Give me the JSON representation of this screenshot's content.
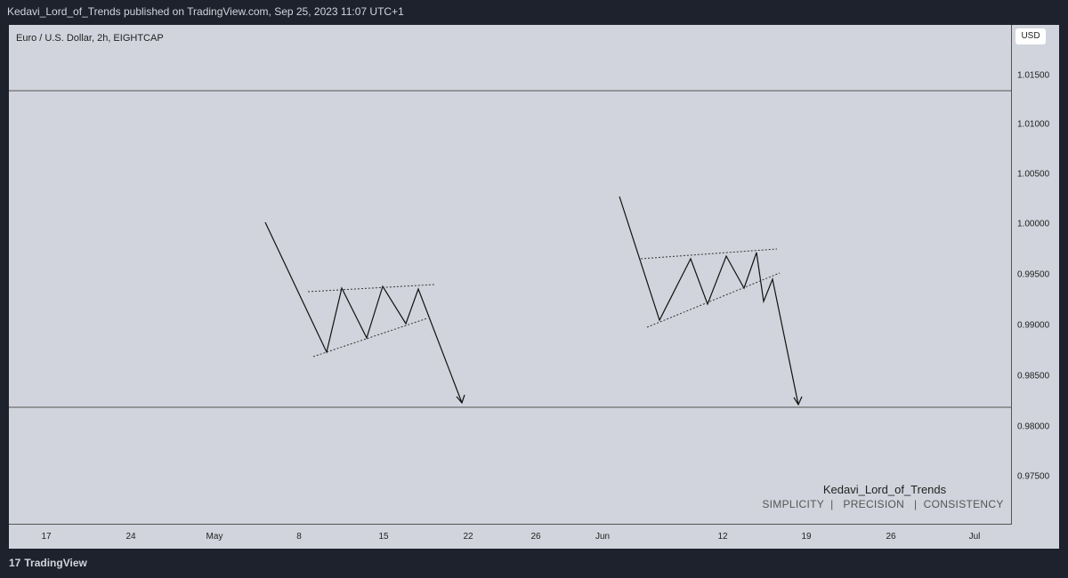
{
  "header": {
    "title": "Kedavi_Lord_of_Trends published on TradingView.com, Sep 25, 2023 11:07 UTC+1"
  },
  "chart": {
    "symbol": "Euro / U.S. Dollar, 2h, EIGHTCAP",
    "currency": "USD",
    "price_labels": [
      "1.01500",
      "1.01000",
      "1.00500",
      "1.00000",
      "0.99500",
      "0.99000",
      "0.98500",
      "0.98000",
      "0.97500"
    ],
    "time_labels": [
      "17",
      "24",
      "May",
      "8",
      "15",
      "22",
      "26",
      "Jun",
      "12",
      "19",
      "26",
      "Jul"
    ],
    "watermark": {
      "name": "Kedavi_Lord_of_Trends",
      "slogan": "SIMPLICITY  |   PRECISION   |  CONSISTENCY"
    }
  },
  "footer": {
    "brand": "TradingView"
  }
}
